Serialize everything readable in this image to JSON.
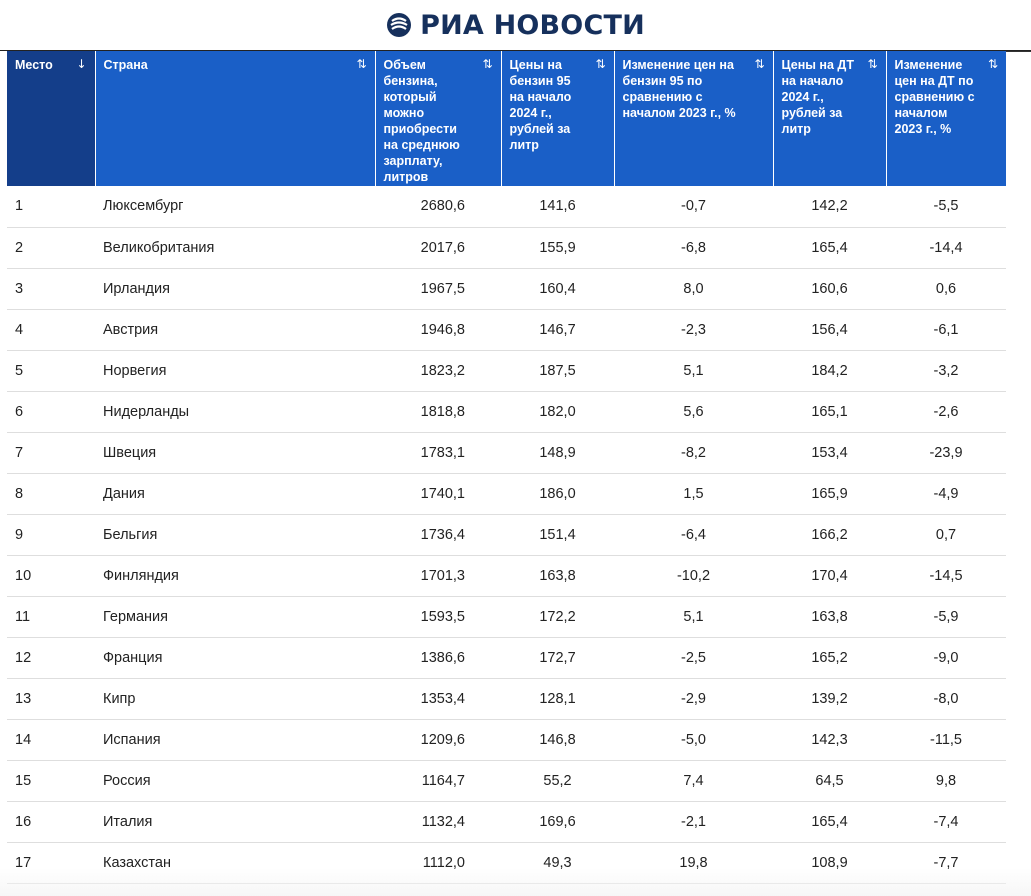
{
  "brand": {
    "name": "РИА НОВОСТИ",
    "logo_icon": "ria-logo-icon",
    "color": "#16305c"
  },
  "colors": {
    "header_bg": "#1a5fc7",
    "active_header_bg": "#143e8a"
  },
  "table": {
    "columns": [
      {
        "label": "Место",
        "sort_icon": "↓"
      },
      {
        "label": "Страна",
        "sort_icon": "⇅"
      },
      {
        "label": "Объем бензина, который можно приобрести на среднюю зарплату, литров",
        "sort_icon": "⇅"
      },
      {
        "label": "Цены на бензин 95 на начало 2024 г., рублей за литр",
        "sort_icon": "⇅"
      },
      {
        "label": "Изменение цен на бензин 95 по сравнению с началом 2023 г., %",
        "sort_icon": "⇅"
      },
      {
        "label": "Цены на ДТ на начало 2024 г., рублей за литр",
        "sort_icon": "⇅"
      },
      {
        "label": "Изменение цен на ДТ по сравнению с началом 2023 г., %",
        "sort_icon": "⇅"
      }
    ]
  },
  "chart_data": {
    "type": "table",
    "columns": [
      "Место",
      "Страна",
      "Объем бензина, который можно приобрести на среднюю зарплату, литров",
      "Цены на бензин 95 на начало 2024 г., рублей за литр",
      "Изменение цен на бензин 95 по сравнению с началом 2023 г., %",
      "Цены на ДТ на начало 2024 г., рублей за литр",
      "Изменение цен на ДТ по сравнению с началом 2023 г., %"
    ],
    "rows": [
      [
        "1",
        "Люксембург",
        "2680,6",
        "141,6",
        "-0,7",
        "142,2",
        "-5,5"
      ],
      [
        "2",
        "Великобритания",
        "2017,6",
        "155,9",
        "-6,8",
        "165,4",
        "-14,4"
      ],
      [
        "3",
        "Ирландия",
        "1967,5",
        "160,4",
        "8,0",
        "160,6",
        "0,6"
      ],
      [
        "4",
        "Австрия",
        "1946,8",
        "146,7",
        "-2,3",
        "156,4",
        "-6,1"
      ],
      [
        "5",
        "Норвегия",
        "1823,2",
        "187,5",
        "5,1",
        "184,2",
        "-3,2"
      ],
      [
        "6",
        "Нидерланды",
        "1818,8",
        "182,0",
        "5,6",
        "165,1",
        "-2,6"
      ],
      [
        "7",
        "Швеция",
        "1783,1",
        "148,9",
        "-8,2",
        "153,4",
        "-23,9"
      ],
      [
        "8",
        "Дания",
        "1740,1",
        "186,0",
        "1,5",
        "165,9",
        "-4,9"
      ],
      [
        "9",
        "Бельгия",
        "1736,4",
        "151,4",
        "-6,4",
        "166,2",
        "0,7"
      ],
      [
        "10",
        "Финляндия",
        "1701,3",
        "163,8",
        "-10,2",
        "170,4",
        "-14,5"
      ],
      [
        "11",
        "Германия",
        "1593,5",
        "172,2",
        "5,1",
        "163,8",
        "-5,9"
      ],
      [
        "12",
        "Франция",
        "1386,6",
        "172,7",
        "-2,5",
        "165,2",
        "-9,0"
      ],
      [
        "13",
        "Кипр",
        "1353,4",
        "128,1",
        "-2,9",
        "139,2",
        "-8,0"
      ],
      [
        "14",
        "Испания",
        "1209,6",
        "146,8",
        "-5,0",
        "142,3",
        "-11,5"
      ],
      [
        "15",
        "Россия",
        "1164,7",
        "55,2",
        "7,4",
        "64,5",
        "9,8"
      ],
      [
        "16",
        "Италия",
        "1132,4",
        "169,6",
        "-2,1",
        "165,4",
        "-7,4"
      ],
      [
        "17",
        "Казахстан",
        "1112,0",
        "49,3",
        "19,8",
        "108,9",
        "-7,7"
      ]
    ]
  }
}
